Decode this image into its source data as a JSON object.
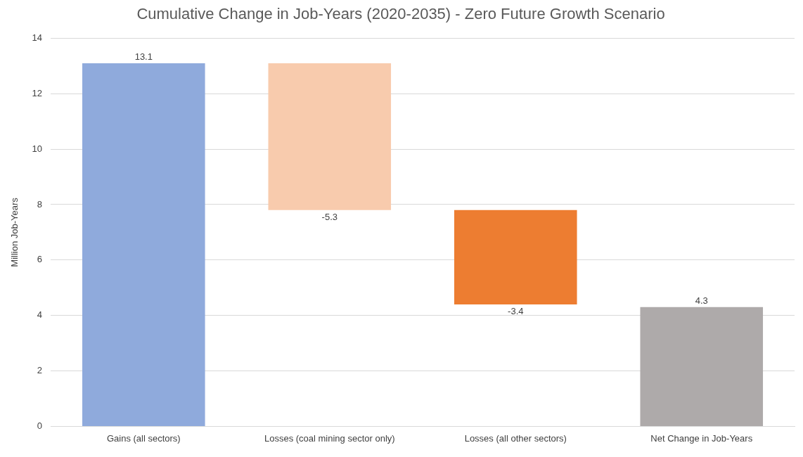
{
  "chart_data": {
    "type": "bar",
    "title": "Cumulative Change in Job-Years (2020-2035) - Zero Future Growth Scenario",
    "ylabel": "Million Job-Years",
    "categories": [
      "Gains (all sectors)",
      "Losses (coal mining sector only)",
      "Losses (all other sectors)",
      "Net Change in Job-Years"
    ],
    "values": [
      13.1,
      -5.3,
      -3.4,
      4.3
    ],
    "base": [
      0,
      13.1,
      7.8,
      0
    ],
    "colors": [
      "#8faadc",
      "#f8cbad",
      "#ed7d31",
      "#aeaaaa"
    ],
    "ylim": [
      0,
      14
    ],
    "yticks": [
      0,
      2,
      4,
      6,
      8,
      10,
      12,
      14
    ],
    "grid": "y",
    "legend": false,
    "data_labels": true
  }
}
